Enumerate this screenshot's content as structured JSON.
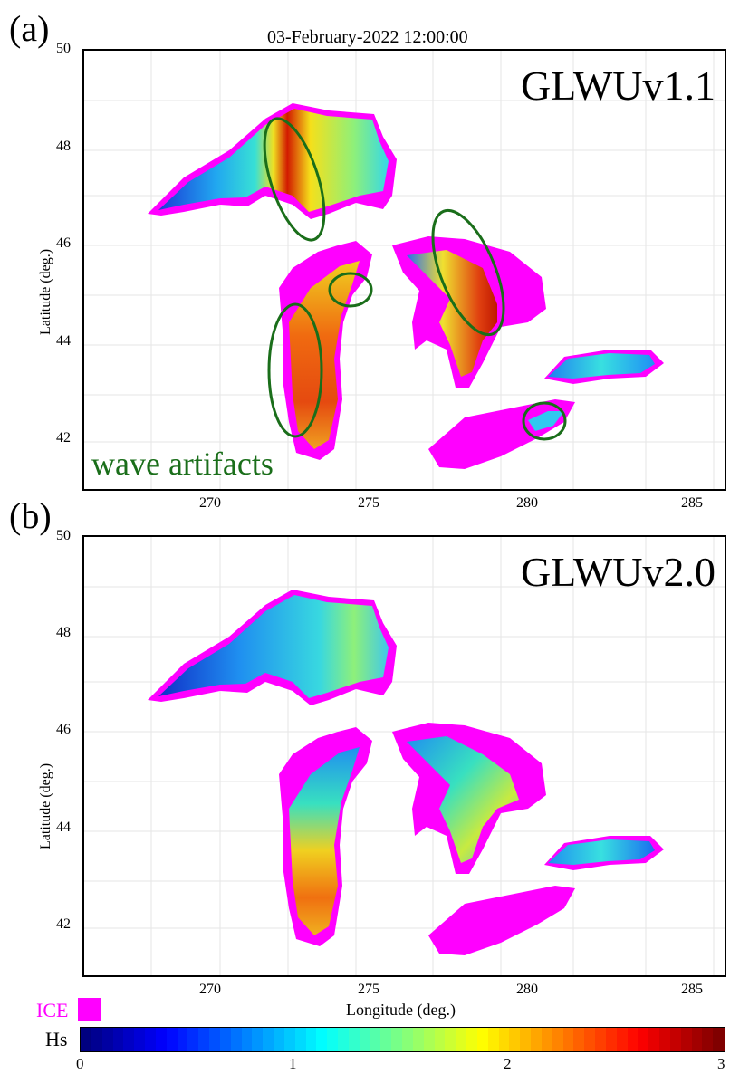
{
  "date_title": "03-February-2022 12:00:00",
  "panels": [
    {
      "tag": "(a)",
      "model_label": "GLWUv1.1",
      "annotation": "wave artifacts",
      "y_axis_label": "Latitude (deg.)",
      "y_ticks": [
        "50",
        "48",
        "46",
        "44",
        "42"
      ],
      "x_ticks": [
        "270",
        "275",
        "280",
        "285"
      ]
    },
    {
      "tag": "(b)",
      "model_label": "GLWUv2.0",
      "y_axis_label": "Latitude (deg.)",
      "y_ticks": [
        "50",
        "48",
        "46",
        "44",
        "42"
      ],
      "x_ticks": [
        "270",
        "275",
        "280",
        "285"
      ]
    }
  ],
  "x_axis_label": "Longitude (deg.)",
  "legend": {
    "ice_label": "ICE",
    "ice_color": "#ff00ff",
    "hs_label": "Hs",
    "colorbar_ticks": [
      "0",
      "1",
      "2",
      "3"
    ],
    "colormap": "jet",
    "range": [
      0,
      3
    ]
  },
  "colors": {
    "artifact_ellipse": "#1a6e1a",
    "annotation": "#1a6e1a",
    "grid": "#e6e6e6"
  }
}
